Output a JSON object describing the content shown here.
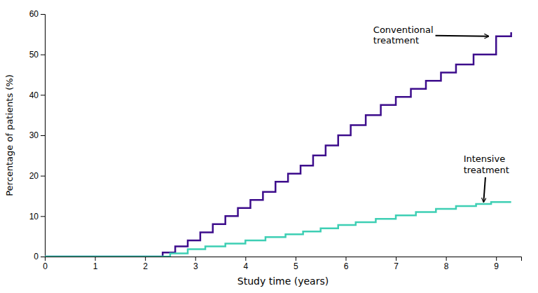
{
  "chart_data": {
    "type": "step",
    "xlabel": "Study time (years)",
    "ylabel": "Percentage of patients (%)",
    "xlim": [
      0,
      9.5
    ],
    "ylim": [
      0,
      60
    ],
    "xticks": [
      0,
      1,
      2,
      3,
      4,
      5,
      6,
      7,
      8,
      9
    ],
    "yticks": [
      0,
      10,
      20,
      30,
      40,
      50,
      60
    ],
    "series": [
      {
        "color": "#3d0d8c",
        "x": [
          0,
          2.0,
          2.35,
          2.6,
          2.85,
          3.1,
          3.35,
          3.6,
          3.85,
          4.1,
          4.35,
          4.6,
          4.85,
          5.1,
          5.35,
          5.6,
          5.85,
          6.1,
          6.4,
          6.7,
          7.0,
          7.3,
          7.6,
          7.9,
          8.2,
          8.55,
          9.0,
          9.3
        ],
        "values": [
          0,
          0,
          1.0,
          2.5,
          4.0,
          6.0,
          8.0,
          10.0,
          12.0,
          14.0,
          16.0,
          18.5,
          20.5,
          22.5,
          25.0,
          27.5,
          30.0,
          32.5,
          35.0,
          37.5,
          39.5,
          41.5,
          43.5,
          45.5,
          47.5,
          50.0,
          54.5,
          55.5
        ]
      },
      {
        "color": "#3ecfb4",
        "x": [
          0,
          2.0,
          2.5,
          2.85,
          3.2,
          3.6,
          4.0,
          4.4,
          4.8,
          5.15,
          5.5,
          5.85,
          6.2,
          6.6,
          7.0,
          7.4,
          7.8,
          8.2,
          8.6,
          8.9,
          9.3
        ],
        "values": [
          0,
          0,
          0.8,
          1.8,
          2.5,
          3.2,
          4.0,
          4.8,
          5.5,
          6.2,
          7.0,
          7.8,
          8.5,
          9.3,
          10.2,
          11.0,
          11.8,
          12.5,
          13.0,
          13.5,
          13.5
        ]
      }
    ],
    "annotations": [
      {
        "text": "Conventional\ntreatment",
        "x": 8.85,
        "y": 54.5,
        "text_x": 6.55,
        "text_y": 57.5
      },
      {
        "text": "Intensive\ntreatment",
        "x": 8.75,
        "y": 13.5,
        "text_x": 8.35,
        "text_y": 25.5
      }
    ]
  }
}
